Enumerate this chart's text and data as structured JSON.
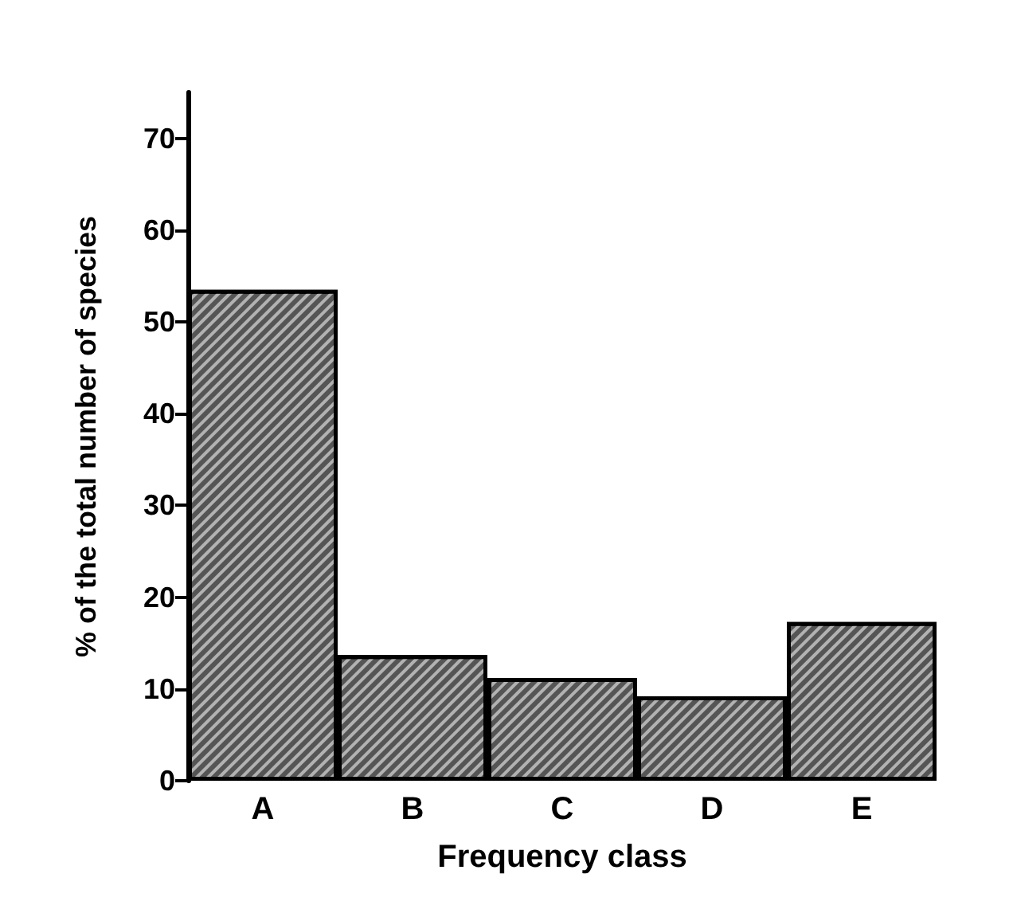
{
  "chart_data": {
    "type": "bar",
    "xlabel": "Frequency class",
    "ylabel": "% of the total number of species",
    "categories": [
      "A",
      "B",
      "C",
      "D",
      "E"
    ],
    "values": [
      53.5,
      13.7,
      11.2,
      9.2,
      17.3
    ],
    "color": "#555555",
    "ylim": [
      0,
      75
    ],
    "yticks": [
      0,
      10,
      20,
      30,
      40,
      50,
      60,
      70
    ],
    "grid": false
  }
}
